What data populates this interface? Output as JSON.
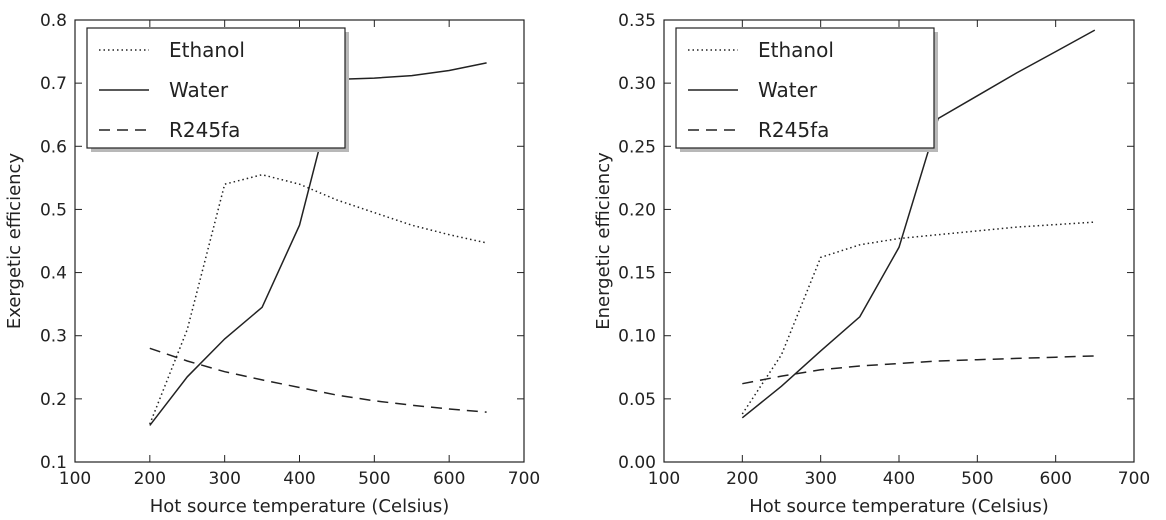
{
  "chart_data": [
    {
      "type": "line",
      "xlabel": "Hot source temperature (Celsius)",
      "ylabel": "Exergetic efficiency",
      "xlim": [
        100,
        700
      ],
      "ylim": [
        0.1,
        0.8
      ],
      "xticks": [
        "100",
        "200",
        "300",
        "400",
        "500",
        "600",
        "700"
      ],
      "yticks": [
        "0.1",
        "0.2",
        "0.3",
        "0.4",
        "0.5",
        "0.6",
        "0.7",
        "0.8"
      ],
      "grid": false,
      "legend_position": "top-left",
      "series": [
        {
          "name": "Ethanol",
          "style": "dotted",
          "x": [
            200,
            250,
            300,
            350,
            400,
            450,
            500,
            550,
            600,
            650
          ],
          "y": [
            0.16,
            0.31,
            0.54,
            0.555,
            0.54,
            0.515,
            0.495,
            0.475,
            0.46,
            0.447
          ]
        },
        {
          "name": "Water",
          "style": "solid",
          "x": [
            200,
            250,
            300,
            350,
            400,
            450,
            500,
            550,
            600,
            650
          ],
          "y": [
            0.158,
            0.235,
            0.295,
            0.345,
            0.475,
            0.706,
            0.708,
            0.712,
            0.72,
            0.732
          ]
        },
        {
          "name": "R245fa",
          "style": "dashed",
          "x": [
            200,
            250,
            300,
            350,
            400,
            450,
            500,
            550,
            600,
            650
          ],
          "y": [
            0.28,
            0.26,
            0.243,
            0.23,
            0.218,
            0.206,
            0.197,
            0.19,
            0.184,
            0.179
          ]
        }
      ]
    },
    {
      "type": "line",
      "xlabel": "Hot source temperature (Celsius)",
      "ylabel": "Energetic efficiency",
      "xlim": [
        100,
        700
      ],
      "ylim": [
        0.0,
        0.35
      ],
      "xticks": [
        "100",
        "200",
        "300",
        "400",
        "500",
        "600",
        "700"
      ],
      "yticks": [
        "0.00",
        "0.05",
        "0.10",
        "0.15",
        "0.20",
        "0.25",
        "0.30",
        "0.35"
      ],
      "grid": false,
      "legend_position": "top-left",
      "series": [
        {
          "name": "Ethanol",
          "style": "dotted",
          "x": [
            200,
            250,
            300,
            350,
            400,
            450,
            500,
            550,
            600,
            650
          ],
          "y": [
            0.038,
            0.085,
            0.162,
            0.172,
            0.177,
            0.18,
            0.183,
            0.186,
            0.188,
            0.19
          ]
        },
        {
          "name": "Water",
          "style": "solid",
          "x": [
            200,
            250,
            300,
            350,
            400,
            450,
            500,
            550,
            600,
            650
          ],
          "y": [
            0.035,
            0.06,
            0.088,
            0.115,
            0.17,
            0.272,
            0.29,
            0.308,
            0.325,
            0.342
          ]
        },
        {
          "name": "R245fa",
          "style": "dashed",
          "x": [
            200,
            250,
            300,
            350,
            400,
            450,
            500,
            550,
            600,
            650
          ],
          "y": [
            0.062,
            0.068,
            0.073,
            0.076,
            0.078,
            0.08,
            0.081,
            0.082,
            0.083,
            0.084
          ]
        }
      ]
    }
  ]
}
